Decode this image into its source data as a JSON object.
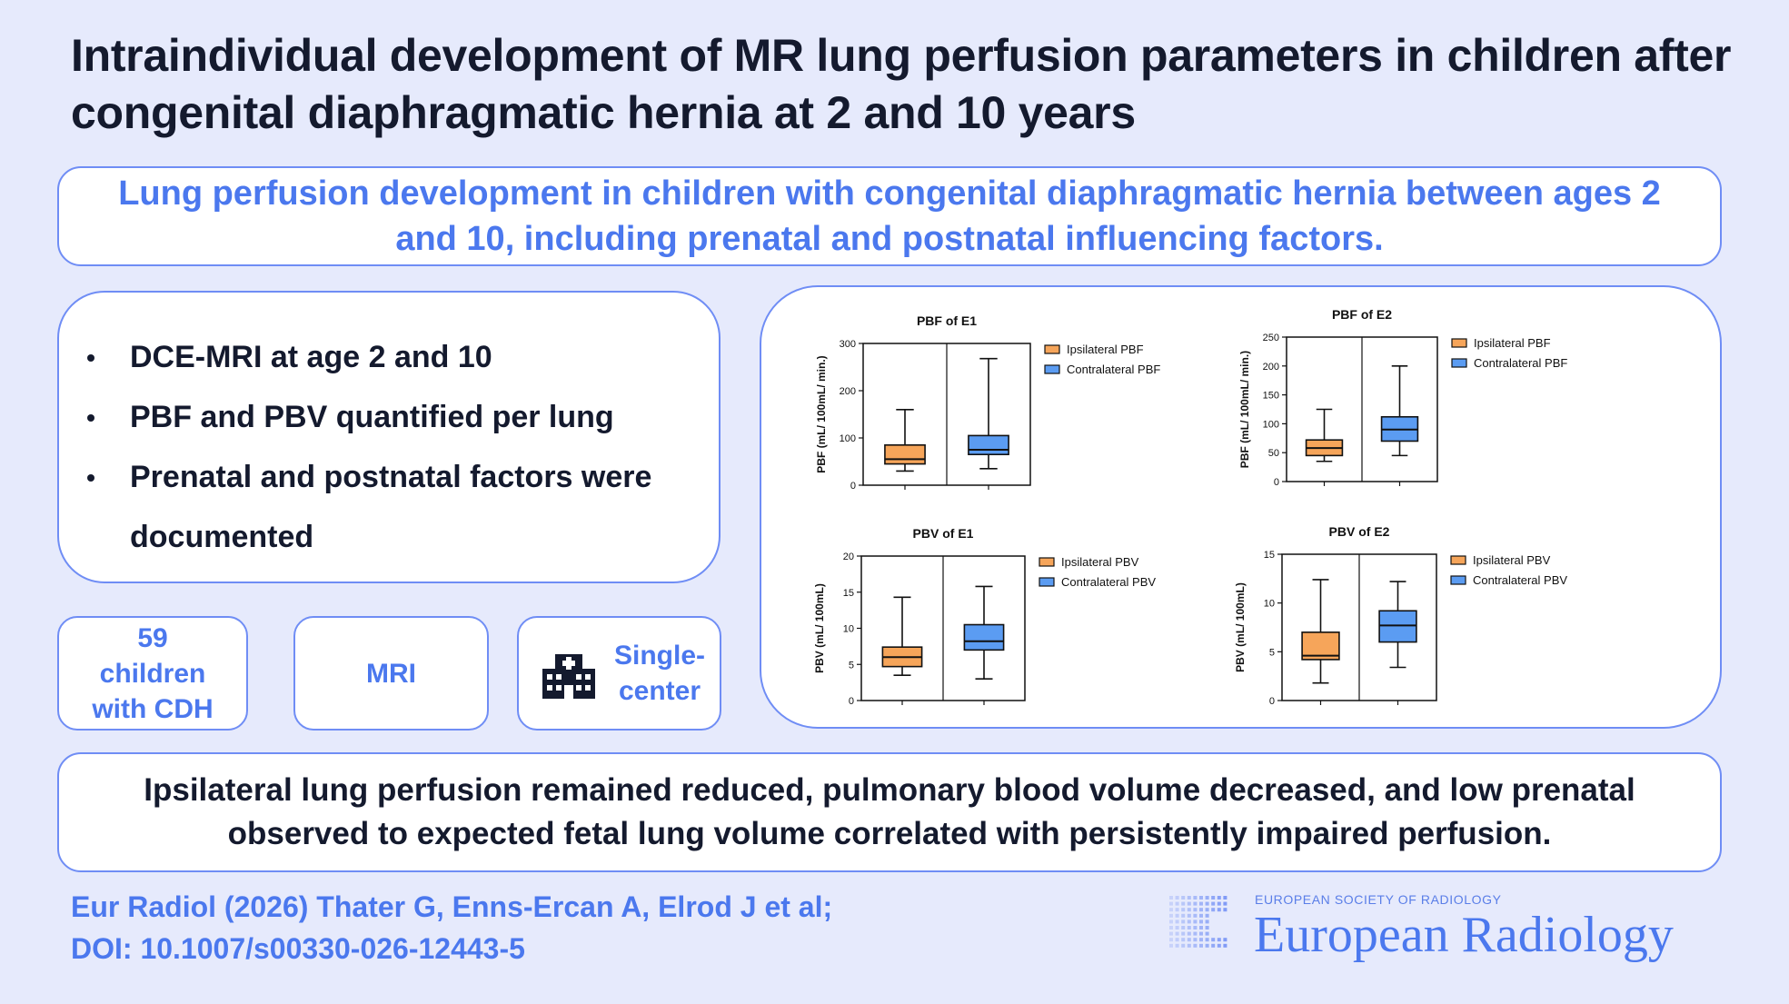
{
  "title": "Intraindividual development of MR lung perfusion parameters in children after congenital diaphragmatic hernia at 2 and 10 years",
  "aim": "Lung perfusion development in children with congenital diaphragmatic hernia between ages 2 and 10, including prenatal and postnatal influencing factors.",
  "methods": [
    "DCE-MRI at age 2 and 10",
    "PBF and PBV quantified per lung",
    "Prenatal and postnatal factors were documented"
  ],
  "stats": {
    "patients": "59 children with CDH",
    "modality": "MRI",
    "center": "Single-center",
    "center_icon": "hospital-icon"
  },
  "result": "Ipsilateral lung perfusion remained reduced, pulmonary blood volume decreased, and low prenatal observed to expected fetal lung volume correlated with persistently impaired perfusion.",
  "citation": {
    "line1": "Eur Radiol (2026) Thater G, Enns-Ercan A, Elrod J et al;",
    "line2": "DOI: 10.1007/s00330-026-12443-5"
  },
  "branding": {
    "society": "EUROPEAN SOCIETY OF RADIOLOGY",
    "journal": "European Radiology"
  },
  "colors": {
    "ipsilateral": "#f6a55a",
    "contralateral": "#5b9cf2",
    "accent": "#4b78ee",
    "border": "#6f8df5"
  },
  "chart_data": [
    {
      "type": "boxplot",
      "title": "PBF of E1",
      "ylabel": "PBF (mL/ 100mL/ min.)",
      "ylim": [
        0,
        300
      ],
      "yticks": [
        0,
        100,
        200,
        300
      ],
      "legend": "right",
      "series": [
        {
          "name": "Ipsilateral PBF",
          "min": 30,
          "q1": 45,
          "median": 55,
          "q3": 85,
          "max": 160
        },
        {
          "name": "Contralateral PBF",
          "min": 35,
          "q1": 65,
          "median": 75,
          "q3": 105,
          "max": 268
        }
      ]
    },
    {
      "type": "boxplot",
      "title": "PBF of E2",
      "ylabel": "PBF (mL/ 100mL/ min.)",
      "ylim": [
        0,
        250
      ],
      "yticks": [
        0,
        50,
        100,
        150,
        200,
        250
      ],
      "legend": "right",
      "series": [
        {
          "name": "Ipsilateral PBF",
          "min": 35,
          "q1": 45,
          "median": 58,
          "q3": 72,
          "max": 125
        },
        {
          "name": "Contralateral PBF",
          "min": 45,
          "q1": 70,
          "median": 90,
          "q3": 112,
          "max": 200
        }
      ]
    },
    {
      "type": "boxplot",
      "title": "PBV of E1",
      "ylabel": "PBV (mL/ 100mL)",
      "ylim": [
        0,
        20
      ],
      "yticks": [
        0,
        5,
        10,
        15,
        20
      ],
      "legend": "right",
      "series": [
        {
          "name": "Ipsilateral PBV",
          "min": 3.5,
          "q1": 4.7,
          "median": 6,
          "q3": 7.4,
          "max": 14.3
        },
        {
          "name": "Contralateral PBV",
          "min": 3,
          "q1": 7,
          "median": 8.2,
          "q3": 10.5,
          "max": 15.8
        }
      ]
    },
    {
      "type": "boxplot",
      "title": "PBV of E2",
      "ylabel": "PBV (mL/ 100mL)",
      "ylim": [
        0,
        15
      ],
      "yticks": [
        0,
        5,
        10,
        15
      ],
      "legend": "right",
      "series": [
        {
          "name": "Ipsilateral PBV",
          "min": 1.8,
          "q1": 4.2,
          "median": 4.6,
          "q3": 7,
          "max": 12.4
        },
        {
          "name": "Contralateral PBV",
          "min": 3.4,
          "q1": 6,
          "median": 7.7,
          "q3": 9.2,
          "max": 12.2
        }
      ]
    }
  ]
}
